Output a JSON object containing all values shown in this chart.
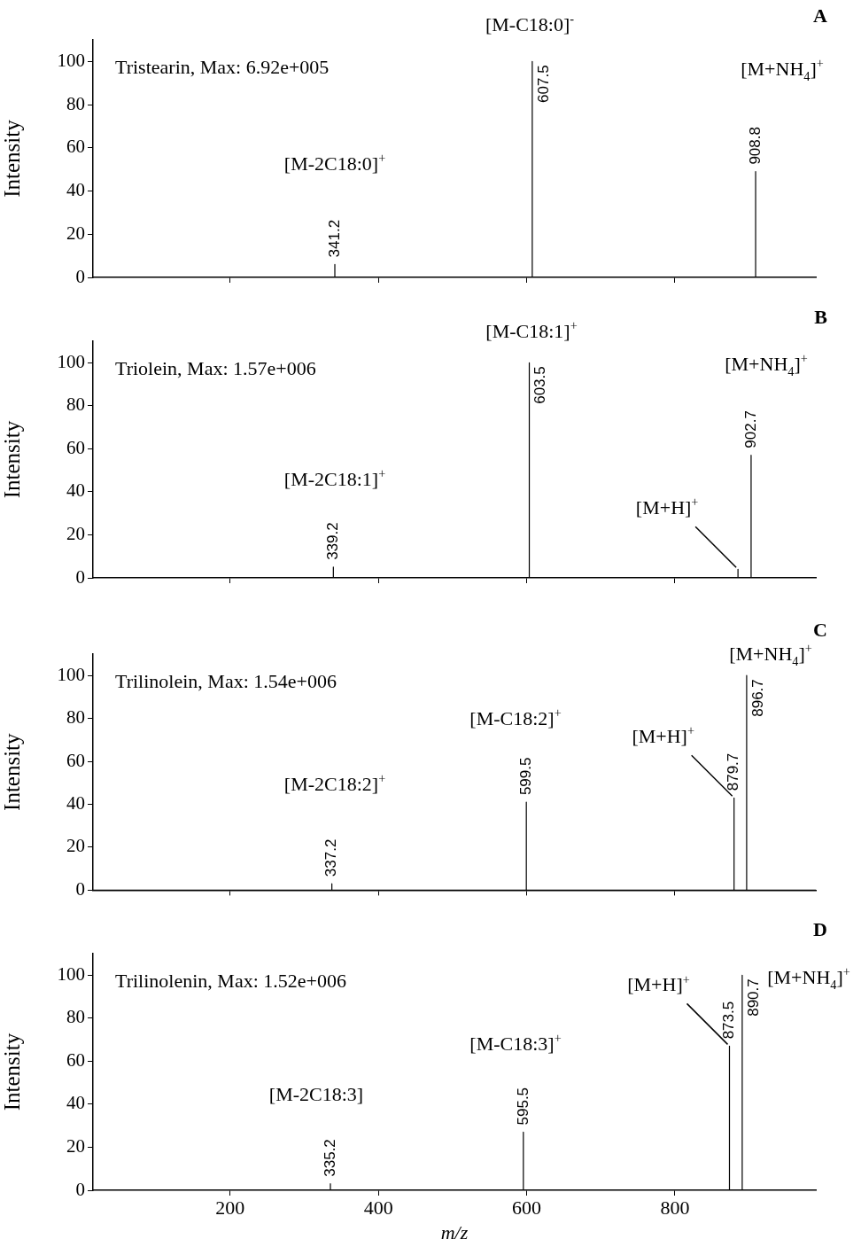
{
  "chart_data": [
    {
      "type": "line",
      "ylabel": "Intensity",
      "color": "#000000",
      "marker": "none",
      "grid": false,
      "tick_labels": "y",
      "xlim": [
        15,
        990
      ],
      "ylim": [
        0,
        110
      ],
      "xticks": [
        200,
        400,
        600,
        800
      ],
      "yticks": [
        0,
        20,
        40,
        60,
        80,
        100
      ],
      "x": [
        15,
        341.2,
        341.2,
        341.2,
        607.5,
        607.5,
        607.5,
        908.8,
        908.8,
        908.8,
        990
      ],
      "values": [
        0,
        0,
        6,
        0,
        0,
        100,
        0,
        0,
        49,
        0,
        0
      ],
      "annotations": [
        "Tristearin, Max: 6.92e+005",
        "A",
        "[M-C18:0]$^{-}$",
        "[M+NH$_{4}$]$^{+}$",
        "[M-2C18:0]$^{+}$",
        {
          "text": "341.2",
          "x": 341.2,
          "y": 6
        },
        {
          "text": "607.5",
          "x": 607.5,
          "y": 100
        },
        {
          "text": "908.8",
          "x": 908.8,
          "y": 49
        }
      ]
    },
    {
      "type": "line",
      "ylabel": "Intensity",
      "color": "#000000",
      "marker": "none",
      "grid": false,
      "tick_labels": "y",
      "xlim": [
        15,
        990
      ],
      "ylim": [
        0,
        110
      ],
      "xticks": [
        200,
        400,
        600,
        800
      ],
      "yticks": [
        0,
        20,
        40,
        60,
        80,
        100
      ],
      "x": [
        15,
        339.2,
        339.2,
        339.2,
        603.5,
        603.5,
        603.5,
        885,
        885,
        885,
        902.7,
        902.7,
        902.7,
        990
      ],
      "values": [
        0,
        0,
        5,
        0,
        0,
        100,
        0,
        0,
        4,
        0,
        0,
        57,
        0,
        0
      ],
      "annotations": [
        "Triolein, Max: 1.57e+006",
        "B",
        "[M-C18:1]$^{+}$",
        "[M+NH$_{4}$]$^{+}$",
        "[M-2C18:1]$^{+}$",
        {
          "text": "[M+H]$^{+}$",
          "x": 885,
          "y": 4
        },
        {
          "text": "339.2",
          "x": 339.2,
          "y": 5
        },
        {
          "text": "603.5",
          "x": 603.5,
          "y": 100
        },
        {
          "text": "902.7",
          "x": 902.7,
          "y": 57
        }
      ]
    },
    {
      "type": "line",
      "ylabel": "Intensity",
      "color": "#000000",
      "marker": "none",
      "grid": false,
      "tick_labels": "y",
      "xlim": [
        15,
        990
      ],
      "ylim": [
        0,
        110
      ],
      "xticks": [
        200,
        400,
        600,
        800
      ],
      "yticks": [
        0,
        20,
        40,
        60,
        80,
        100
      ],
      "x": [
        15,
        337.2,
        337.2,
        337.2,
        599.5,
        599.5,
        599.5,
        879.7,
        879.7,
        879.7,
        896.7,
        896.7,
        896.7,
        990
      ],
      "values": [
        0,
        0,
        3,
        0,
        0,
        41,
        0,
        0,
        43,
        0,
        0,
        100,
        0,
        0
      ],
      "annotations": [
        "Trilinolein, Max: 1.54e+006",
        "C",
        "[M-2C18:2]$^{+}$",
        "[M-C18:2]$^{+}$",
        "[M+NH$_{4}$]$^{+}$",
        {
          "text": "[M+H]$^{+}$",
          "x": 879.7,
          "y": 43
        },
        {
          "text": "337.2",
          "x": 337.2,
          "y": 3
        },
        {
          "text": "599.5",
          "x": 599.5,
          "y": 41
        },
        {
          "text": "879.7",
          "x": 879.7,
          "y": 43
        },
        {
          "text": "896.7",
          "x": 896.7,
          "y": 100
        }
      ]
    },
    {
      "type": "line",
      "ylabel": "Intensity",
      "xlabel": "m/z",
      "color": "#000000",
      "marker": "none",
      "grid": false,
      "xlim": [
        15,
        990
      ],
      "ylim": [
        0,
        110
      ],
      "xticks": [
        200,
        400,
        600,
        800
      ],
      "yticks": [
        0,
        20,
        40,
        60,
        80,
        100
      ],
      "x": [
        15,
        335.2,
        335.2,
        335.2,
        595.5,
        595.5,
        595.5,
        873.5,
        873.5,
        873.5,
        890.7,
        890.7,
        890.7,
        990
      ],
      "values": [
        0,
        0,
        3,
        0,
        0,
        27,
        0,
        0,
        67,
        0,
        0,
        100,
        0,
        0
      ],
      "annotations": [
        "Trilinolenin, Max: 1.52e+006",
        "D",
        "[M-2C18:3]",
        "[M-C18:3]$^{+}$",
        "[M+NH$_{4}$]$^{+}$",
        {
          "text": "[M+H]$^{+}$",
          "x": 873.5,
          "y": 67
        },
        {
          "text": "335.2",
          "x": 335.2,
          "y": 3
        },
        {
          "text": "595.5",
          "x": 595.5,
          "y": 27
        },
        {
          "text": "873.5",
          "x": 873.5,
          "y": 67
        },
        {
          "text": "890.7",
          "x": 890.7,
          "y": 100
        }
      ]
    }
  ]
}
